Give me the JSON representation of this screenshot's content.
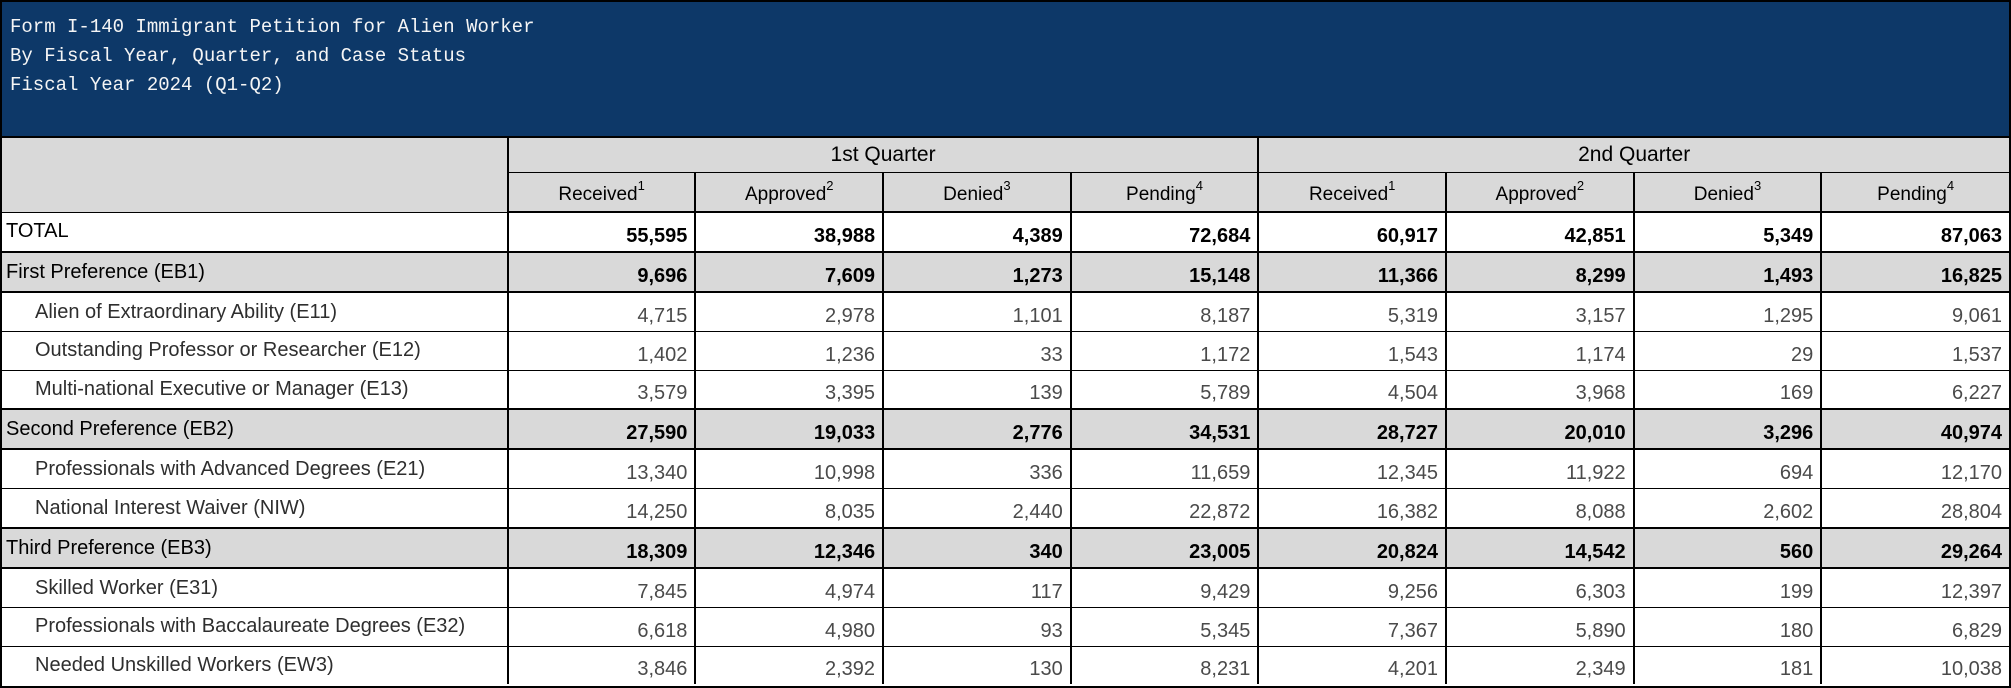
{
  "colors": {
    "band_bg": "#0d3868",
    "band_text": "#f5f5f5",
    "header_gray": "#d9d9d9",
    "grid": "#000000"
  },
  "title": {
    "line1": "Form I-140 Immigrant Petition for Alien Worker",
    "line2": "By Fiscal Year, Quarter, and Case Status",
    "line3": "Fiscal Year 2024 (Q1-Q2)"
  },
  "table": {
    "quarters": [
      "1st Quarter",
      "2nd Quarter"
    ],
    "status_columns": [
      {
        "label": "Received",
        "sup": "1"
      },
      {
        "label": "Approved",
        "sup": "2"
      },
      {
        "label": "Denied",
        "sup": "3"
      },
      {
        "label": "Pending",
        "sup": "4"
      }
    ],
    "rows": [
      {
        "label": "TOTAL",
        "type": "total",
        "q1": [
          "55,595",
          "38,988",
          "4,389",
          "72,684"
        ],
        "q2": [
          "60,917",
          "42,851",
          "5,349",
          "87,063"
        ]
      },
      {
        "label": "First Preference (EB1)",
        "type": "section",
        "q1": [
          "9,696",
          "7,609",
          "1,273",
          "15,148"
        ],
        "q2": [
          "11,366",
          "8,299",
          "1,493",
          "16,825"
        ]
      },
      {
        "label": "Alien of Extraordinary Ability (E11)",
        "type": "sub",
        "q1": [
          "4,715",
          "2,978",
          "1,101",
          "8,187"
        ],
        "q2": [
          "5,319",
          "3,157",
          "1,295",
          "9,061"
        ]
      },
      {
        "label": "Outstanding Professor or Researcher (E12)",
        "type": "sub",
        "q1": [
          "1,402",
          "1,236",
          "33",
          "1,172"
        ],
        "q2": [
          "1,543",
          "1,174",
          "29",
          "1,537"
        ]
      },
      {
        "label": "Multi-national Executive or Manager (E13)",
        "type": "sub",
        "q1": [
          "3,579",
          "3,395",
          "139",
          "5,789"
        ],
        "q2": [
          "4,504",
          "3,968",
          "169",
          "6,227"
        ]
      },
      {
        "label": "Second Preference (EB2)",
        "type": "section",
        "q1": [
          "27,590",
          "19,033",
          "2,776",
          "34,531"
        ],
        "q2": [
          "28,727",
          "20,010",
          "3,296",
          "40,974"
        ]
      },
      {
        "label": "Professionals with Advanced Degrees (E21)",
        "type": "sub",
        "q1": [
          "13,340",
          "10,998",
          "336",
          "11,659"
        ],
        "q2": [
          "12,345",
          "11,922",
          "694",
          "12,170"
        ]
      },
      {
        "label": "National Interest Waiver (NIW)",
        "type": "sub",
        "q1": [
          "14,250",
          "8,035",
          "2,440",
          "22,872"
        ],
        "q2": [
          "16,382",
          "8,088",
          "2,602",
          "28,804"
        ]
      },
      {
        "label": "Third Preference (EB3)",
        "type": "section",
        "q1": [
          "18,309",
          "12,346",
          "340",
          "23,005"
        ],
        "q2": [
          "20,824",
          "14,542",
          "560",
          "29,264"
        ]
      },
      {
        "label": "Skilled Worker (E31)",
        "type": "sub",
        "q1": [
          "7,845",
          "4,974",
          "117",
          "9,429"
        ],
        "q2": [
          "9,256",
          "6,303",
          "199",
          "12,397"
        ]
      },
      {
        "label": "Professionals with Baccalaureate Degrees (E32)",
        "type": "sub",
        "q1": [
          "6,618",
          "4,980",
          "93",
          "5,345"
        ],
        "q2": [
          "7,367",
          "5,890",
          "180",
          "6,829"
        ]
      },
      {
        "label": "Needed Unskilled Workers (EW3)",
        "type": "sub",
        "q1": [
          "3,846",
          "2,392",
          "130",
          "8,231"
        ],
        "q2": [
          "4,201",
          "2,349",
          "181",
          "10,038"
        ]
      }
    ]
  }
}
